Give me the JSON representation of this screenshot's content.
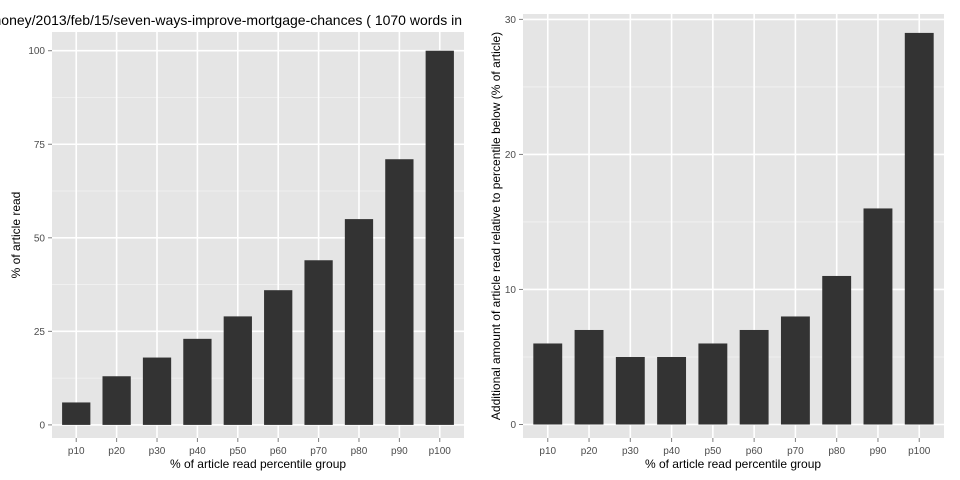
{
  "chart_data": [
    {
      "type": "bar",
      "title": "money/2013/feb/15/seven-ways-improve-mortgage-chances ( 1070 words in",
      "xlabel": "% of article read percentile group",
      "ylabel": "% of article read",
      "categories": [
        "p10",
        "p20",
        "p30",
        "p40",
        "p50",
        "p60",
        "p70",
        "p80",
        "p90",
        "p100"
      ],
      "values": [
        6,
        13,
        18,
        23,
        29,
        36,
        44,
        55,
        71,
        100
      ],
      "ylim": [
        -3.5,
        105
      ],
      "yticks": [
        0,
        25,
        50,
        75,
        100
      ],
      "grid": true,
      "bar_color": "#333333",
      "panel_color": "#e5e5e5",
      "grid_color": "#ffffff"
    },
    {
      "type": "bar",
      "title": "",
      "xlabel": "% of article read percentile group",
      "ylabel": "Additional amount of article read relative to percentile below (% of article)",
      "categories": [
        "p10",
        "p20",
        "p30",
        "p40",
        "p50",
        "p60",
        "p70",
        "p80",
        "p90",
        "p100"
      ],
      "values": [
        6,
        7,
        5,
        5,
        6,
        7,
        8,
        11,
        16,
        29
      ],
      "ylim": [
        -1,
        30.4
      ],
      "yticks": [
        0,
        10,
        20,
        30
      ],
      "grid": true,
      "bar_color": "#333333",
      "panel_color": "#e5e5e5",
      "grid_color": "#ffffff"
    }
  ]
}
